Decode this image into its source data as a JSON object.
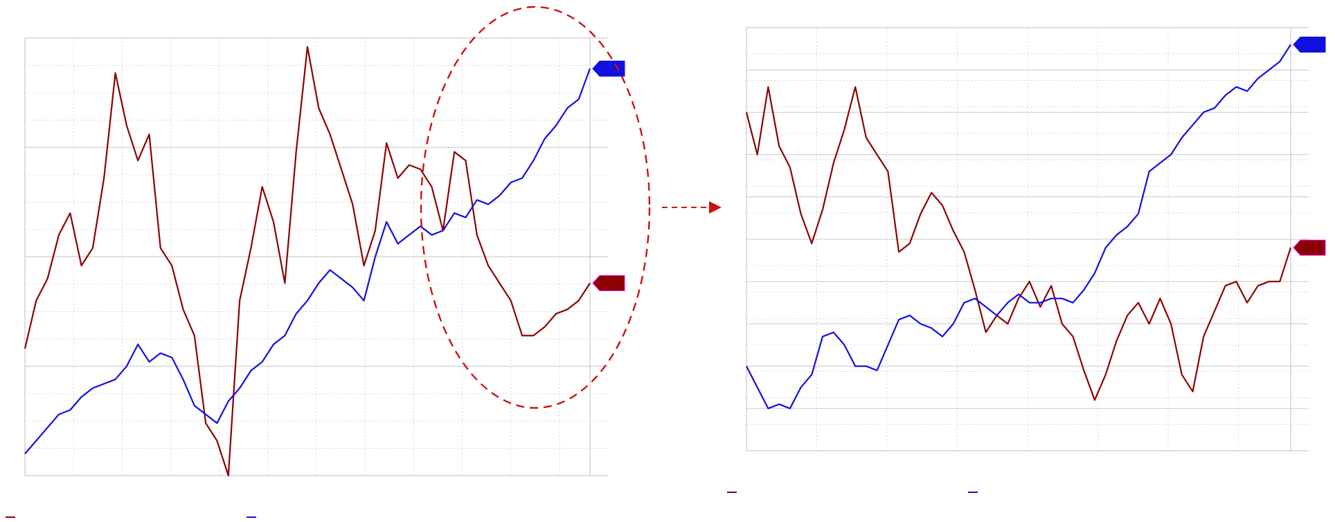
{
  "colors": {
    "series_1": "#8b0000",
    "series_2": "#1010e0",
    "marker_outline": "#ff00ff",
    "highlight": "#cc1111",
    "grid": "#c8c8c8"
  },
  "chart_data": [
    {
      "type": "line",
      "title": "",
      "xlabel": "",
      "ylabel": "",
      "x_range": [
        0,
        100
      ],
      "ylim_left": [
        0,
        100
      ],
      "ylim_right": [
        0,
        100
      ],
      "grid": true,
      "legend_placement": "bottom-left",
      "series": [
        {
          "axis": "left",
          "color": "#8b0000",
          "x": [
            0,
            2,
            4,
            6,
            8,
            10,
            12,
            14,
            16,
            18,
            20,
            22,
            24,
            26,
            28,
            30,
            32,
            34,
            36,
            38,
            40,
            42,
            44,
            46,
            48,
            50,
            52,
            54,
            56,
            58,
            60,
            62,
            64,
            66,
            68,
            70,
            72,
            74,
            76,
            78,
            80,
            82,
            84,
            86,
            88,
            90,
            92,
            94,
            96,
            98,
            100
          ],
          "values": [
            29,
            40,
            45,
            55,
            60,
            48,
            52,
            68,
            92,
            80,
            72,
            78,
            52,
            48,
            38,
            32,
            12,
            8,
            0,
            40,
            52,
            66,
            58,
            44,
            74,
            98,
            84,
            78,
            70,
            62,
            48,
            56,
            76,
            68,
            71,
            70,
            66,
            56,
            74,
            72,
            55,
            48,
            44,
            40,
            32,
            32,
            34,
            37,
            38,
            40,
            44
          ]
        },
        {
          "axis": "right",
          "color": "#1010e0",
          "x": [
            0,
            2,
            4,
            6,
            8,
            10,
            12,
            14,
            16,
            18,
            20,
            22,
            24,
            26,
            28,
            30,
            32,
            34,
            36,
            38,
            40,
            42,
            44,
            46,
            48,
            50,
            52,
            54,
            56,
            58,
            60,
            62,
            64,
            66,
            68,
            70,
            72,
            74,
            76,
            78,
            80,
            82,
            84,
            86,
            88,
            90,
            92,
            94,
            96,
            98,
            100
          ],
          "values": [
            5,
            8,
            11,
            14,
            15,
            18,
            20,
            21,
            22,
            25,
            30,
            26,
            28,
            27,
            22,
            16,
            14,
            12,
            17,
            20,
            24,
            26,
            30,
            32,
            37,
            40,
            44,
            47,
            45,
            43,
            40,
            50,
            58,
            53,
            55,
            57,
            55,
            56,
            60,
            59,
            63,
            62,
            64,
            67,
            68,
            72,
            77,
            80,
            84,
            86,
            93
          ]
        }
      ]
    },
    {
      "type": "line",
      "title": "",
      "xlabel": "",
      "ylabel": "",
      "x_range": [
        0,
        100
      ],
      "ylim_left": [
        0,
        100
      ],
      "ylim_right": [
        0,
        100
      ],
      "grid": true,
      "legend_placement": "bottom-left",
      "series": [
        {
          "axis": "left",
          "color": "#8b0000",
          "x": [
            0,
            2,
            4,
            6,
            8,
            10,
            12,
            14,
            16,
            18,
            20,
            22,
            24,
            26,
            28,
            30,
            32,
            34,
            36,
            38,
            40,
            42,
            44,
            46,
            48,
            50,
            52,
            54,
            56,
            58,
            60,
            62,
            64,
            66,
            68,
            70,
            72,
            74,
            76,
            78,
            80,
            82,
            84,
            86,
            88,
            90,
            92,
            94,
            96,
            98,
            100
          ],
          "values": [
            80,
            70,
            86,
            72,
            67,
            56,
            49,
            57,
            68,
            76,
            86,
            74,
            70,
            66,
            47,
            49,
            56,
            61,
            58,
            52,
            47,
            38,
            28,
            32,
            30,
            36,
            40,
            34,
            39,
            30,
            27,
            19,
            12,
            18,
            26,
            32,
            35,
            30,
            36,
            30,
            18,
            14,
            27,
            33,
            39,
            40,
            35,
            39,
            40,
            40,
            48
          ]
        },
        {
          "axis": "right",
          "color": "#1010e0",
          "x": [
            0,
            2,
            4,
            6,
            8,
            10,
            12,
            14,
            16,
            18,
            20,
            22,
            24,
            26,
            28,
            30,
            32,
            34,
            36,
            38,
            40,
            42,
            44,
            46,
            48,
            50,
            52,
            54,
            56,
            58,
            60,
            62,
            64,
            66,
            68,
            70,
            72,
            74,
            76,
            78,
            80,
            82,
            84,
            86,
            88,
            90,
            92,
            94,
            96,
            98,
            100
          ],
          "values": [
            20,
            15,
            10,
            11,
            10,
            15,
            18,
            27,
            28,
            25,
            20,
            20,
            19,
            25,
            31,
            32,
            30,
            29,
            27,
            30,
            35,
            36,
            34,
            32,
            35,
            37,
            35,
            35,
            36,
            36,
            35,
            38,
            42,
            48,
            51,
            53,
            56,
            66,
            68,
            70,
            74,
            77,
            80,
            81,
            84,
            86,
            85,
            88,
            90,
            92,
            96
          ]
        }
      ]
    }
  ]
}
